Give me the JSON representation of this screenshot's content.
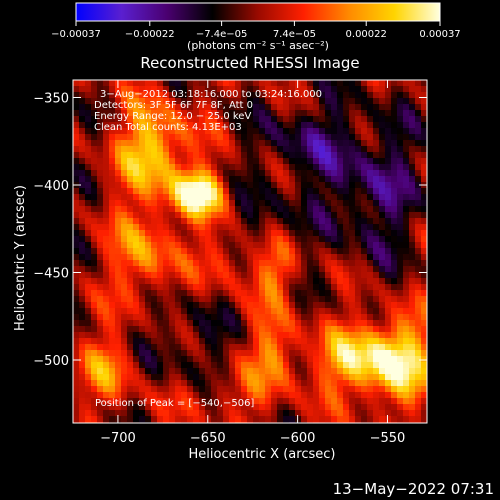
{
  "chart_data": {
    "type": "heatmap",
    "title": "Reconstructed RHESSI Image",
    "xlabel": "Heliocentric X (arcsec)",
    "ylabel": "Heliocentric Y (arcsec)",
    "xlim": [
      -725,
      -528
    ],
    "ylim": [
      -536,
      -340
    ],
    "x_ticks": [
      -700,
      -650,
      -600,
      -550
    ],
    "y_ticks": [
      -350,
      -400,
      -450,
      -500
    ],
    "x_tick_labels": [
      "−700",
      "−650",
      "−600",
      "−550"
    ],
    "y_tick_labels": [
      "−350",
      "−400",
      "−450",
      "−500"
    ],
    "colorbar": {
      "min": -0.00037,
      "max": 0.00037,
      "ticks": [
        -0.00037,
        -0.00022,
        -7.4e-05,
        7.4e-05,
        0.00022,
        0.00037
      ],
      "tick_labels": [
        "−0.00037",
        "−0.00022",
        "−7.4e−05",
        "7.4e−05",
        "0.00022",
        "0.00037"
      ],
      "units": "(photons cm⁻² s⁻¹ asec⁻²)",
      "colormap": [
        "#0000ff",
        "#5a1fd0",
        "#4a0070",
        "#000000",
        "#9a0a00",
        "#ff2000",
        "#ff8a00",
        "#ffd400",
        "#ffffe0"
      ]
    },
    "annotations": {
      "time": "3−Aug−2012 03:18:16.000 to 03:24:16.000",
      "detectors": "Detectors: 3F 5F 6F 7F 8F, Att 0",
      "energy": "Energy Range: 12.0 − 25.0 keV",
      "clean": "Clean    Total counts: 4.13E+03",
      "peak": "Position of Peak = [−540,−506]"
    },
    "peak": {
      "x": -540,
      "y": -506
    },
    "blobs": [
      {
        "x": -655,
        "y": -405,
        "sx": 10,
        "sy": 9,
        "a": 1.0
      },
      {
        "x": -680,
        "y": -380,
        "sx": 13,
        "sy": 18,
        "a": 0.8
      },
      {
        "x": -685,
        "y": -440,
        "sx": 12,
        "sy": 20,
        "a": 0.55
      },
      {
        "x": -705,
        "y": -505,
        "sx": 12,
        "sy": 14,
        "a": 0.45
      },
      {
        "x": -640,
        "y": -440,
        "sx": 10,
        "sy": 14,
        "a": 0.35
      },
      {
        "x": -612,
        "y": -450,
        "sx": 8,
        "sy": 12,
        "a": 0.45
      },
      {
        "x": -612,
        "y": -495,
        "sx": 10,
        "sy": 14,
        "a": 0.5
      },
      {
        "x": -575,
        "y": -500,
        "sx": 12,
        "sy": 12,
        "a": 0.45
      },
      {
        "x": -548,
        "y": -500,
        "sx": 16,
        "sy": 16,
        "a": 1.0
      },
      {
        "x": -640,
        "y": -520,
        "sx": 22,
        "sy": 10,
        "a": 0.25
      },
      {
        "x": -560,
        "y": -400,
        "sx": 20,
        "sy": 30,
        "a": -0.45
      },
      {
        "x": -600,
        "y": -375,
        "sx": 16,
        "sy": 16,
        "a": -0.35
      },
      {
        "x": -665,
        "y": -490,
        "sx": 18,
        "sy": 22,
        "a": -0.25
      },
      {
        "x": -620,
        "y": -420,
        "sx": 12,
        "sy": 12,
        "a": -0.3
      }
    ],
    "ripple": {
      "amplitude": 0.28,
      "kx": 0.11,
      "ky": 0.085
    }
  },
  "footer": {
    "timestamp": "13−May−2022 07:31"
  }
}
